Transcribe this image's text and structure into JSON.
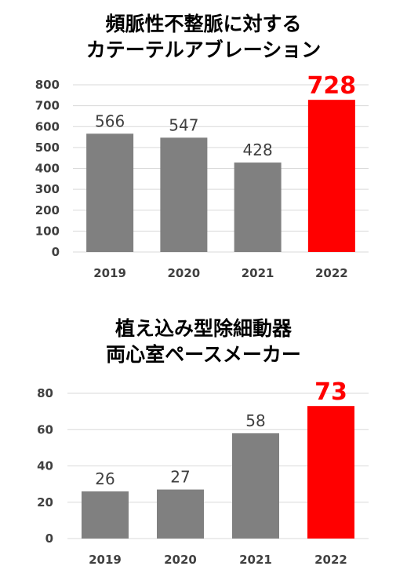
{
  "chart_data": [
    {
      "type": "bar",
      "title_line1": "頻脈性不整脈に対する",
      "title_line2": "カテーテルアブレーション",
      "categories": [
        "2019",
        "2020",
        "2021",
        "2022"
      ],
      "values": [
        566,
        547,
        428,
        728
      ],
      "yticks": [
        0,
        100,
        200,
        300,
        400,
        500,
        600,
        700,
        800
      ],
      "ylim": [
        0,
        800
      ],
      "grid": true,
      "legend": "none",
      "highlight_index": 3,
      "colors": {
        "bar": "#808080",
        "highlight": "#ff0000",
        "grid": "#d9d9d9"
      }
    },
    {
      "type": "bar",
      "title_line1": "植え込み型除細動器",
      "title_line2": "両心室ペースメーカー",
      "categories": [
        "2019",
        "2020",
        "2021",
        "2022"
      ],
      "values": [
        26,
        27,
        58,
        73
      ],
      "yticks": [
        0,
        20,
        40,
        60,
        80
      ],
      "ylim": [
        0,
        80
      ],
      "grid": true,
      "legend": "none",
      "highlight_index": 3,
      "colors": {
        "bar": "#808080",
        "highlight": "#ff0000",
        "grid": "#d9d9d9"
      }
    }
  ]
}
